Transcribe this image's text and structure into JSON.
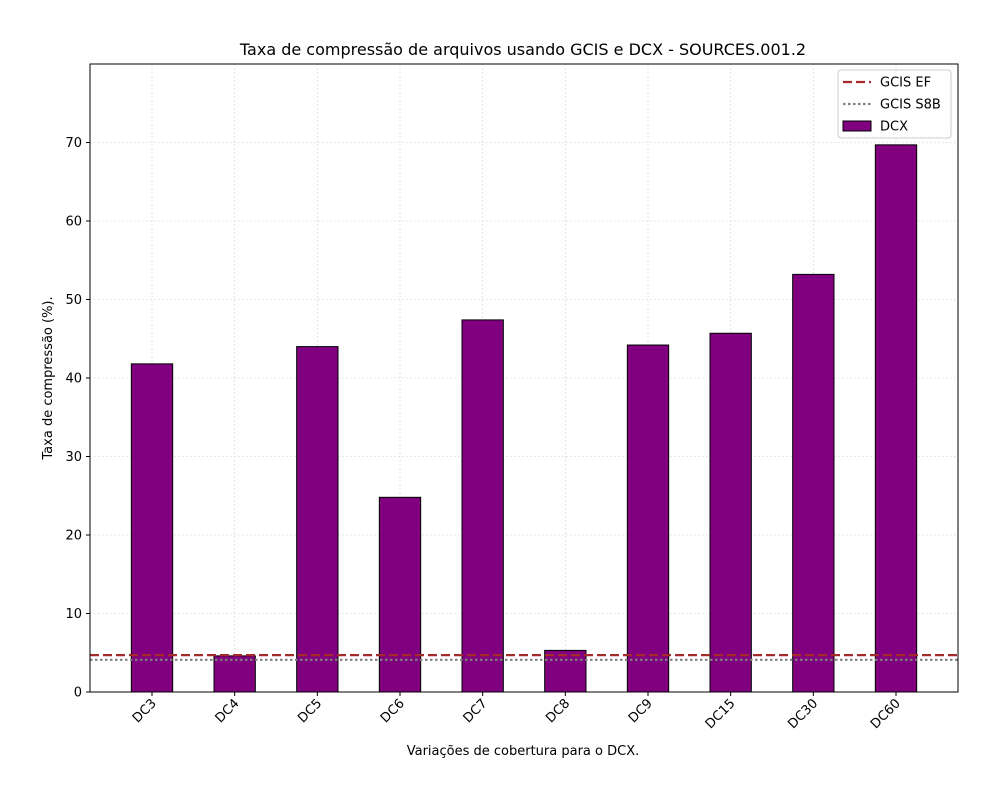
{
  "chart_data": {
    "type": "bar",
    "title": "Taxa de compressão de arquivos usando GCIS e DCX -  SOURCES.001.2",
    "xlabel": "Variações de cobertura para o DCX.",
    "ylabel": "Taxa de compressão (%).",
    "categories": [
      "DC3",
      "DC4",
      "DC5",
      "DC6",
      "DC7",
      "DC8",
      "DC9",
      "DC15",
      "DC30",
      "DC60"
    ],
    "series": [
      {
        "name": "DCX",
        "color": "#800080",
        "values": [
          41.8,
          4.6,
          44.0,
          24.8,
          47.4,
          5.3,
          44.2,
          45.7,
          53.2,
          69.7
        ]
      }
    ],
    "reference_lines": [
      {
        "name": "GCIS EF",
        "value": 4.7,
        "color": "#a52a2a",
        "style": "dashed"
      },
      {
        "name": "GCIS S8B",
        "value": 4.1,
        "color": "#808080",
        "style": "dotted"
      }
    ],
    "ylim": [
      0,
      80
    ],
    "yticks": [
      0,
      10,
      20,
      30,
      40,
      50,
      60,
      70
    ],
    "grid": true,
    "legend_position": "top-right",
    "xtick_rotation": 45
  }
}
